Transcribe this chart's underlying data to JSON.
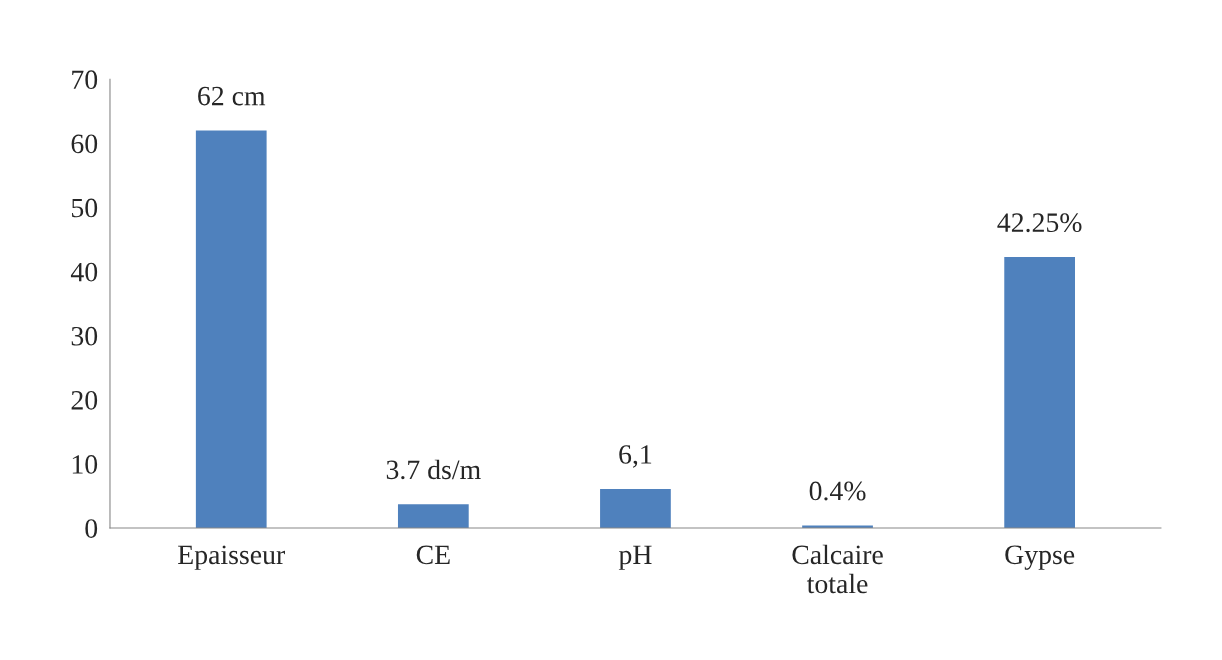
{
  "chart_data": {
    "type": "bar",
    "categories": [
      "Epaisseur",
      "CE",
      "pH",
      "Calcaire\ntotale",
      "Gypse"
    ],
    "values": [
      62,
      3.7,
      6.1,
      0.4,
      42.25
    ],
    "value_labels": [
      "62 cm",
      "3.7 ds/m",
      "6,1",
      "0.4%",
      "42.25%"
    ],
    "color": "#4f81bd",
    "ylim": [
      0,
      70
    ],
    "yticks": [
      0,
      10,
      20,
      30,
      40,
      50,
      60,
      70
    ],
    "grid": false
  }
}
